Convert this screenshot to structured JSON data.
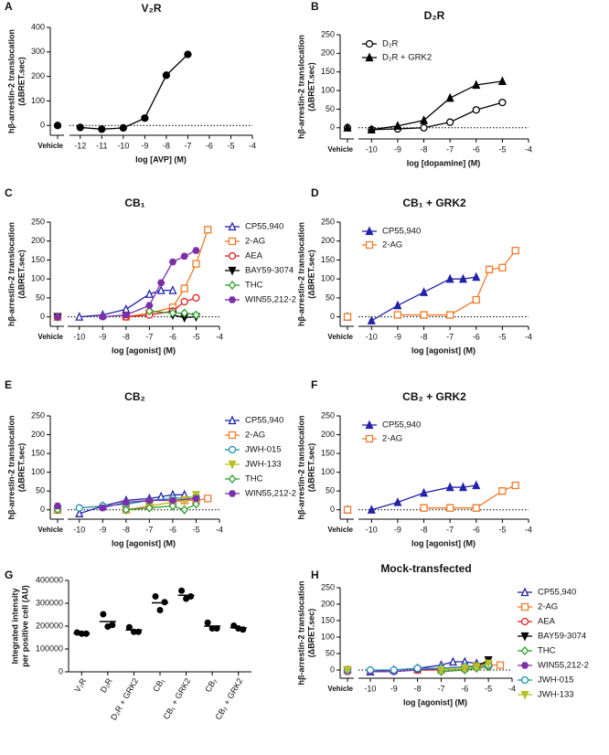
{
  "chart_data": [
    {
      "type": "line",
      "panel": "A",
      "title": "V₂R",
      "xlabel": "log [AVP] (M)",
      "ylabel": [
        "hβ-arrestin-2 translocation",
        "(ΔBRET.sec)"
      ],
      "vehicle_label": "Vehicle",
      "xlim": [
        -12.5,
        -4
      ],
      "xticks": [
        -12,
        -11,
        -10,
        -9,
        -8,
        -7,
        -6,
        -5,
        -4
      ],
      "ylim": [
        -40,
        400
      ],
      "yticks": [
        0,
        100,
        200,
        300,
        400
      ],
      "series": [
        {
          "color": "#000000",
          "marker": "circle",
          "filled": true,
          "vehicle": 0,
          "x": [
            -12,
            -11,
            -10,
            -9,
            -8,
            -7
          ],
          "values": [
            -8,
            -15,
            -10,
            30,
            205,
            290
          ]
        }
      ]
    },
    {
      "type": "line",
      "panel": "B",
      "title": "D₂R",
      "xlabel": "log [dopamine] (M)",
      "ylabel": [
        "hβ-arrestin-2 translocation",
        "(ΔBRET.sec)"
      ],
      "vehicle_label": "Vehicle",
      "xlim": [
        -10.5,
        -4
      ],
      "xticks": [
        -10,
        -9,
        -8,
        -7,
        -6,
        -5,
        -4
      ],
      "ylim": [
        -30,
        250
      ],
      "yticks": [
        0,
        50,
        100,
        150,
        200,
        250
      ],
      "legend": "upper left",
      "series": [
        {
          "name": "D₂R",
          "color": "#000000",
          "marker": "circle",
          "filled": false,
          "vehicle": 0,
          "x": [
            -10,
            -9,
            -8,
            -7,
            -6,
            -5
          ],
          "values": [
            -5,
            -3,
            0,
            15,
            48,
            68
          ]
        },
        {
          "name": "D₂R + GRK2",
          "color": "#000000",
          "marker": "triangle",
          "filled": true,
          "vehicle": 0,
          "x": [
            -10,
            -9,
            -8,
            -7,
            -6,
            -5
          ],
          "values": [
            -5,
            5,
            20,
            80,
            115,
            125
          ]
        }
      ]
    },
    {
      "type": "line",
      "panel": "C",
      "title": "CB₁",
      "xlabel": "log [agonist] (M)",
      "ylabel": [
        "hβ-arrestin-2 translocation",
        "(ΔBRET.sec)"
      ],
      "vehicle_label": "Vehicle",
      "xlim": [
        -10.5,
        -4
      ],
      "xticks": [
        -10,
        -9,
        -8,
        -7,
        -6,
        -5,
        -4
      ],
      "ylim": [
        -25,
        250
      ],
      "yticks": [
        0,
        50,
        100,
        150,
        200,
        250
      ],
      "legend": "right",
      "series": [
        {
          "name": "CP55,940",
          "color": "#2323a8",
          "marker": "triangle",
          "filled": false,
          "vehicle": 0,
          "x": [
            -10,
            -9,
            -8,
            -7,
            -6.5,
            -6
          ],
          "values": [
            0,
            5,
            20,
            60,
            70,
            70
          ]
        },
        {
          "name": "2-AG",
          "color": "#f07b2a",
          "marker": "square",
          "filled": false,
          "vehicle": 0,
          "x": [
            -8,
            -7,
            -6,
            -5.5,
            -5,
            -4.5
          ],
          "values": [
            0,
            10,
            25,
            75,
            140,
            230
          ]
        },
        {
          "name": "AEA",
          "color": "#e02020",
          "marker": "circle",
          "filled": false,
          "vehicle": 0,
          "x": [
            -8,
            -7,
            -6,
            -5.5,
            -5
          ],
          "values": [
            0,
            5,
            15,
            40,
            50
          ]
        },
        {
          "name": "BAY59-3074",
          "color": "#000000",
          "marker": "triangle-down",
          "filled": true,
          "vehicle": 0,
          "x": [
            -6,
            -5.5,
            -5
          ],
          "values": [
            5,
            -2,
            0
          ]
        },
        {
          "name": "THC",
          "color": "#2ca02c",
          "marker": "diamond",
          "filled": false,
          "vehicle": 0,
          "x": [
            -7,
            -6,
            -5.5,
            -5
          ],
          "values": [
            15,
            10,
            10,
            5
          ]
        },
        {
          "name": "WIN55,212-2",
          "color": "#7b2fa8",
          "marker": "hexagon",
          "filled": true,
          "vehicle": 0,
          "x": [
            -9,
            -8,
            -7,
            -6.5,
            -6,
            -5.5,
            -5
          ],
          "values": [
            0,
            5,
            30,
            90,
            145,
            160,
            175
          ]
        }
      ]
    },
    {
      "type": "line",
      "panel": "D",
      "title": "CB₁ + GRK2",
      "xlabel": "log [agonist] (M)",
      "ylabel": [
        "hβ-arrestin-2 translocation",
        "(ΔBRET.sec)"
      ],
      "vehicle_label": "Vehicle",
      "xlim": [
        -10.5,
        -4
      ],
      "xticks": [
        -10,
        -9,
        -8,
        -7,
        -6,
        -5,
        -4
      ],
      "ylim": [
        -25,
        250
      ],
      "yticks": [
        0,
        50,
        100,
        150,
        200,
        250
      ],
      "legend": "upper left",
      "series": [
        {
          "name": "CP55,940",
          "color": "#2323a8",
          "marker": "triangle",
          "filled": true,
          "vehicle": 0,
          "x": [
            -10,
            -9,
            -8,
            -7,
            -6.5,
            -6
          ],
          "values": [
            -10,
            30,
            65,
            100,
            100,
            105
          ]
        },
        {
          "name": "2-AG",
          "color": "#f07b2a",
          "marker": "square",
          "filled": false,
          "vehicle": 0,
          "x": [
            -9,
            -8,
            -7,
            -6,
            -5.5,
            -5,
            -4.5
          ],
          "values": [
            5,
            5,
            5,
            45,
            125,
            130,
            175
          ]
        }
      ]
    },
    {
      "type": "line",
      "panel": "E",
      "title": "CB₂",
      "xlabel": "log [agonist] (M)",
      "ylabel": [
        "hβ-arrestin-2 translocation",
        "(ΔBRET.sec)"
      ],
      "vehicle_label": "Vehicle",
      "xlim": [
        -10.5,
        -4
      ],
      "xticks": [
        -10,
        -9,
        -8,
        -7,
        -6,
        -5,
        -4
      ],
      "ylim": [
        -25,
        250
      ],
      "yticks": [
        0,
        50,
        100,
        150,
        200,
        250
      ],
      "legend": "right",
      "series": [
        {
          "name": "CP55,940",
          "color": "#2323a8",
          "marker": "triangle",
          "filled": false,
          "vehicle": 0,
          "x": [
            -10,
            -9,
            -8,
            -7,
            -6.5,
            -6,
            -5.5
          ],
          "values": [
            -10,
            10,
            25,
            30,
            35,
            40,
            40
          ]
        },
        {
          "name": "2-AG",
          "color": "#f07b2a",
          "marker": "square",
          "filled": false,
          "vehicle": 0,
          "x": [
            -8,
            -7,
            -6,
            -5.5,
            -5,
            -4.5
          ],
          "values": [
            0,
            10,
            20,
            25,
            25,
            30
          ]
        },
        {
          "name": "JWH-015",
          "color": "#1e90a8",
          "marker": "circle",
          "filled": false,
          "vehicle": 5,
          "x": [
            -10,
            -9,
            -8,
            -7,
            -6,
            -5
          ],
          "values": [
            5,
            10,
            15,
            25,
            30,
            35
          ]
        },
        {
          "name": "JWH-133",
          "color": "#b8c020",
          "marker": "triangle-down",
          "filled": true,
          "vehicle": 0,
          "x": [
            -7,
            -6,
            -5.5,
            -5
          ],
          "values": [
            10,
            20,
            25,
            40
          ]
        },
        {
          "name": "THC",
          "color": "#2ca02c",
          "marker": "diamond",
          "filled": false,
          "vehicle": 0,
          "x": [
            -8,
            -7,
            -6,
            -5.5,
            -5
          ],
          "values": [
            0,
            5,
            10,
            0,
            15
          ]
        },
        {
          "name": "WIN55,212-2",
          "color": "#7b2fa8",
          "marker": "hexagon",
          "filled": true,
          "vehicle": 10,
          "x": [
            -9,
            -8,
            -7,
            -6,
            -5
          ],
          "values": [
            5,
            20,
            25,
            25,
            30
          ]
        }
      ]
    },
    {
      "type": "line",
      "panel": "F",
      "title": "CB₂ + GRK2",
      "xlabel": "log [agonist] (M)",
      "ylabel": [
        "hβ-arrestin-2 translocation",
        "(ΔBRET.sec)"
      ],
      "vehicle_label": "Vehicle",
      "xlim": [
        -10.5,
        -4
      ],
      "xticks": [
        -10,
        -9,
        -8,
        -7,
        -6,
        -5,
        -4
      ],
      "ylim": [
        -25,
        250
      ],
      "yticks": [
        0,
        50,
        100,
        150,
        200,
        250
      ],
      "legend": "upper left",
      "series": [
        {
          "name": "CP55,940",
          "color": "#2323a8",
          "marker": "triangle",
          "filled": true,
          "vehicle": 0,
          "x": [
            -10,
            -9,
            -8,
            -7,
            -6.5,
            -6
          ],
          "values": [
            0,
            20,
            45,
            60,
            60,
            65
          ]
        },
        {
          "name": "2-AG",
          "color": "#f07b2a",
          "marker": "square",
          "filled": false,
          "vehicle": 0,
          "x": [
            -8,
            -7,
            -6,
            -5,
            -4.5
          ],
          "values": [
            5,
            5,
            5,
            50,
            65
          ]
        }
      ]
    },
    {
      "type": "strip",
      "panel": "G",
      "ylabel": [
        "Integrated intensity",
        "per positive cell (AU)"
      ],
      "categories": [
        "V₂R",
        "D₂R",
        "D₂R + GRK2",
        "CB₁",
        "CB₁ + GRK2",
        "CB₂",
        "CB₂ + GRK2"
      ],
      "values": [
        [
          172000,
          167000,
          167000
        ],
        [
          252000,
          198000,
          205000
        ],
        [
          195000,
          175000,
          175000
        ],
        [
          330000,
          270000,
          305000
        ],
        [
          355000,
          320000,
          330000
        ],
        [
          215000,
          190000,
          190000
        ],
        [
          202000,
          190000,
          185000
        ]
      ],
      "means": [
        168000,
        220000,
        183000,
        302000,
        335000,
        200000,
        193000
      ],
      "ylim": [
        0,
        400000
      ],
      "yticks": [
        0,
        100000,
        200000,
        300000,
        400000
      ]
    },
    {
      "type": "line",
      "panel": "H",
      "title": "Mock-transfected",
      "xlabel": "log [agonist] (M)",
      "ylabel": [
        "hβ-arrestin-2 translocation",
        "(ΔBRET.sec)"
      ],
      "vehicle_label": "Vehicle",
      "xlim": [
        -10.5,
        -4
      ],
      "xticks": [
        -10,
        -9,
        -8,
        -7,
        -6,
        -5,
        -4
      ],
      "ylim": [
        -25,
        250
      ],
      "yticks": [
        0,
        50,
        100,
        150,
        200,
        250
      ],
      "legend": "right",
      "series": [
        {
          "name": "CP55,940",
          "color": "#2323a8",
          "marker": "triangle",
          "filled": false,
          "vehicle": 0,
          "x": [
            -10,
            -9,
            -8,
            -7,
            -6.5,
            -6,
            -5.5,
            -5
          ],
          "values": [
            -5,
            0,
            5,
            15,
            25,
            25,
            20,
            20
          ]
        },
        {
          "name": "2-AG",
          "color": "#f07b2a",
          "marker": "square",
          "filled": false,
          "vehicle": 0,
          "x": [
            -8,
            -7,
            -6,
            -5.5,
            -5,
            -4.5
          ],
          "values": [
            0,
            0,
            5,
            10,
            15,
            15
          ]
        },
        {
          "name": "AEA",
          "color": "#e02020",
          "marker": "circle",
          "filled": false,
          "vehicle": 0,
          "x": [
            -8,
            -7,
            -6,
            -5.5,
            -5
          ],
          "values": [
            0,
            0,
            5,
            10,
            15
          ]
        },
        {
          "name": "BAY59-3074",
          "color": "#000000",
          "marker": "triangle-down",
          "filled": true,
          "vehicle": 0,
          "x": [
            -6,
            -5.5,
            -5
          ],
          "values": [
            5,
            10,
            30
          ]
        },
        {
          "name": "THC",
          "color": "#2ca02c",
          "marker": "diamond",
          "filled": false,
          "vehicle": 0,
          "x": [
            -7,
            -6,
            -5.5,
            -5
          ],
          "values": [
            -5,
            0,
            5,
            10
          ]
        },
        {
          "name": "WIN55,212-2",
          "color": "#7b2fa8",
          "marker": "hexagon",
          "filled": true,
          "vehicle": -5,
          "x": [
            -10,
            -9,
            -8,
            -7,
            -6,
            -5
          ],
          "values": [
            -5,
            -5,
            0,
            5,
            10,
            15
          ]
        },
        {
          "name": "JWH-015",
          "color": "#1e90a8",
          "marker": "circle",
          "filled": false,
          "vehicle": 0,
          "x": [
            -10,
            -9,
            -8,
            -7,
            -6,
            -5
          ],
          "values": [
            0,
            0,
            5,
            5,
            10,
            15
          ]
        },
        {
          "name": "JWH-133",
          "color": "#b8c020",
          "marker": "triangle-down",
          "filled": true,
          "vehicle": 0,
          "x": [
            -7,
            -6,
            -5.5,
            -5
          ],
          "values": [
            0,
            5,
            10,
            20
          ]
        }
      ]
    }
  ]
}
